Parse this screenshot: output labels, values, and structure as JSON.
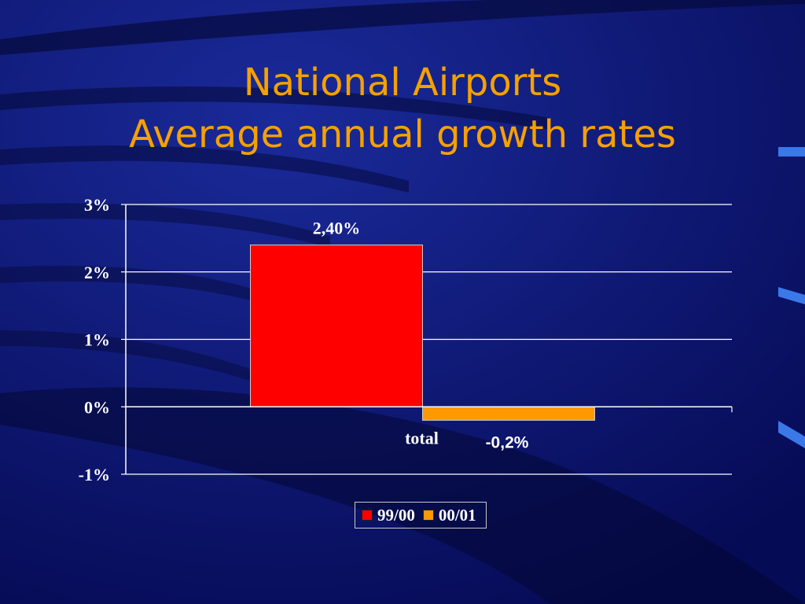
{
  "slide": {
    "title_line1": "National Airports",
    "title_line2": "Average annual growth rates"
  },
  "colors": {
    "background": "#0b1470",
    "title": "#f6a000",
    "series_99_00": "#ff0000",
    "series_00_01": "#ff9900"
  },
  "chart_data": {
    "type": "bar",
    "categories": [
      "total"
    ],
    "series": [
      {
        "name": "99/00",
        "values": [
          2.4
        ],
        "data_label": "2,40%",
        "color": "#ff0000"
      },
      {
        "name": "00/01",
        "values": [
          -0.2
        ],
        "data_label": "-0,2%",
        "color": "#ff9900"
      }
    ],
    "ylim": [
      -1,
      3
    ],
    "y_ticks": [
      3,
      2,
      1,
      0,
      -1
    ],
    "y_tick_labels": [
      "3%",
      "2%",
      "1%",
      "0%",
      "-1%"
    ],
    "grid": true,
    "legend": "bottom"
  }
}
